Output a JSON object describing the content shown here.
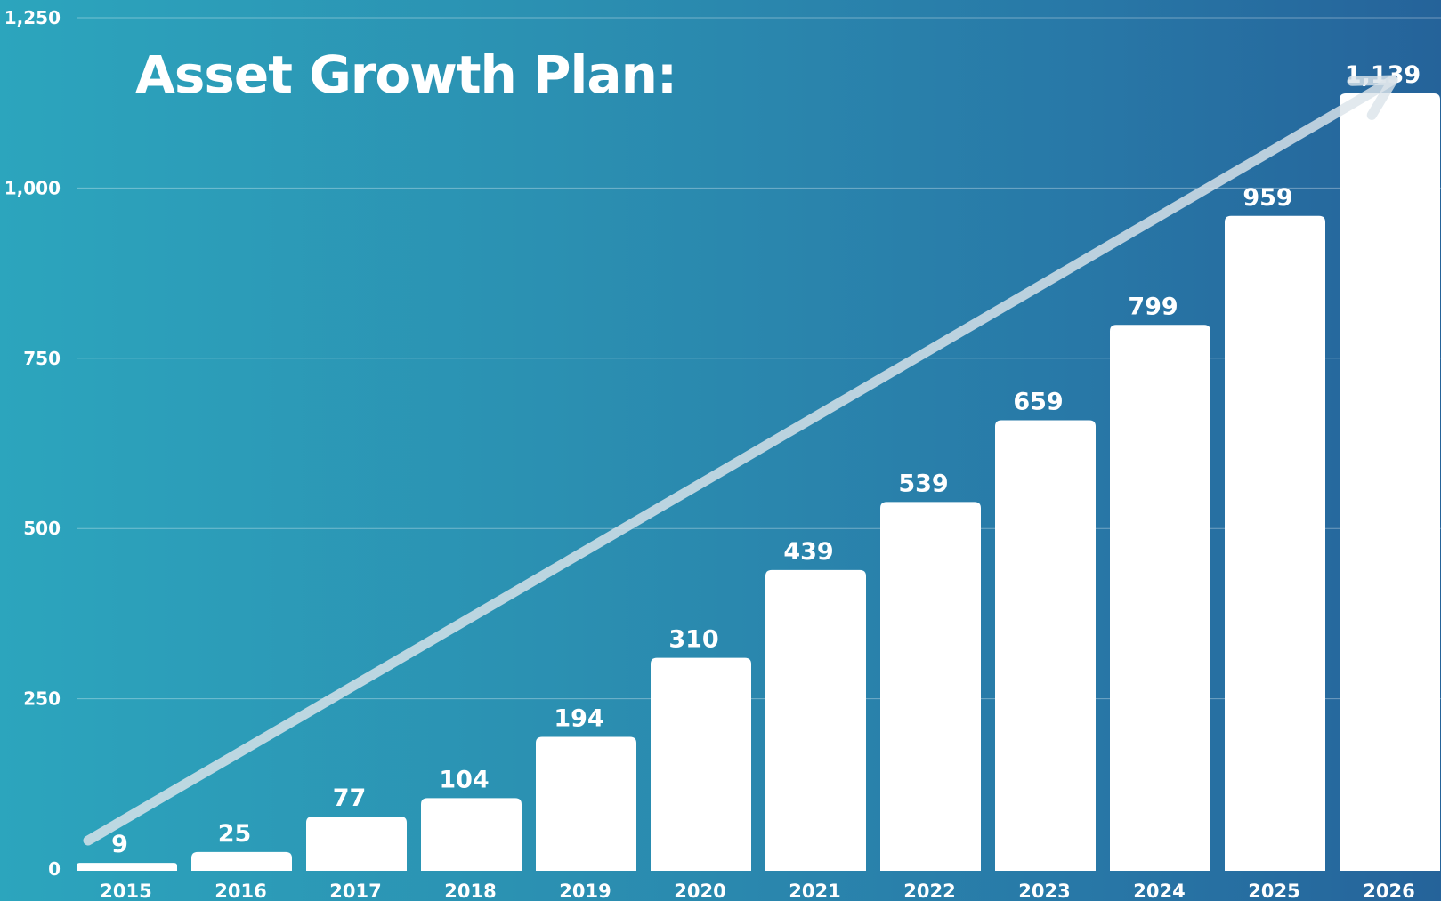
{
  "chart_data": {
    "type": "bar",
    "title": "Asset Growth Plan:",
    "categories": [
      "2015",
      "2016",
      "2017",
      "2018",
      "2019",
      "2020",
      "2021",
      "2022",
      "2023",
      "2024",
      "2025",
      "2026"
    ],
    "values": [
      9,
      25,
      77,
      104,
      194,
      310,
      439,
      539,
      659,
      799,
      959,
      1139
    ],
    "value_labels": [
      "9",
      "25",
      "77",
      "104",
      "194",
      "310",
      "439",
      "539",
      "659",
      "799",
      "959",
      "1,139"
    ],
    "ylim": [
      0,
      1250
    ],
    "yticks": [
      0,
      250,
      500,
      750,
      1000,
      1250
    ],
    "ytick_labels": [
      "0",
      "250",
      "500",
      "750",
      "1,000",
      "1,250"
    ],
    "xlabel": "",
    "ylabel": "",
    "grid": true,
    "bar_color": "#ffffff",
    "background_gradient": [
      "#2ca5bd",
      "#25639a"
    ],
    "trend_arrow": true
  }
}
